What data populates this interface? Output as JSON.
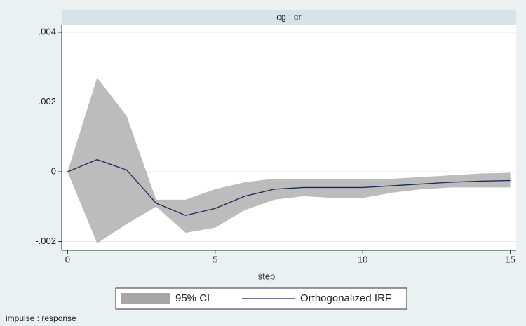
{
  "chart_data": {
    "type": "line",
    "title": "cg : cr",
    "x_label": "step",
    "note": "impulse : response",
    "x": [
      0,
      1,
      2,
      3,
      4,
      5,
      6,
      7,
      8,
      9,
      10,
      11,
      12,
      13,
      14,
      15
    ],
    "series": [
      {
        "name": "95% CI",
        "color": "#a6a6a6",
        "upper": [
          0,
          0.0027,
          0.0016,
          -0.0008,
          -0.0008,
          -0.0005,
          -0.0003,
          -0.0002,
          -0.0002,
          -0.0002,
          -0.0002,
          -0.0002,
          -0.00015,
          -0.0001,
          -5e-05,
          -3e-05
        ],
        "lower": [
          0,
          -0.00205,
          -0.0015,
          -0.001,
          -0.00175,
          -0.0016,
          -0.0011,
          -0.0008,
          -0.0007,
          -0.00075,
          -0.00075,
          -0.0006,
          -0.0005,
          -0.00045,
          -0.00045,
          -0.00045
        ]
      },
      {
        "name": "Orthogonalized IRF",
        "color": "#1a2a5a",
        "values": [
          0,
          0.00035,
          5e-05,
          -0.0009,
          -0.00125,
          -0.00105,
          -0.0007,
          -0.0005,
          -0.00045,
          -0.00045,
          -0.00045,
          -0.0004,
          -0.00035,
          -0.0003,
          -0.00027,
          -0.00025
        ]
      }
    ],
    "xlim": [
      -0.2,
      15.2
    ],
    "ylim": [
      -0.00225,
      0.0042
    ],
    "xticks": [
      0,
      5,
      10,
      15
    ],
    "yticks": [
      {
        "value": -0.002,
        "label": "-.002"
      },
      {
        "value": 0,
        "label": "0"
      },
      {
        "value": 0.002,
        "label": ".002"
      },
      {
        "value": 0.004,
        "label": ".004"
      }
    ],
    "grid": true
  }
}
